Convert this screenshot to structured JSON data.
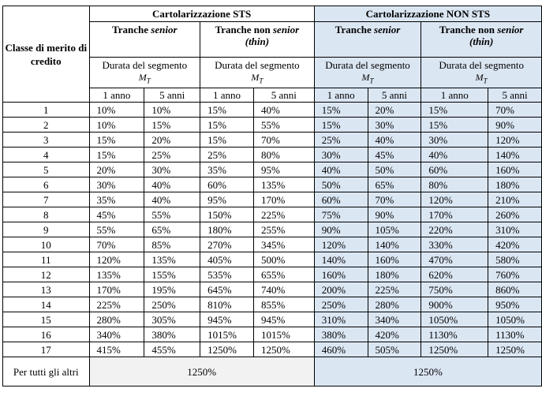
{
  "header": {
    "classe_label": "Classe di merito di credito",
    "groups": [
      "Cartolarizzazione STS",
      "Cartolarizzazione NON STS"
    ],
    "tranches": [
      {
        "prefix": "Tranche ",
        "em": "senior",
        "suffix": "",
        "line2": ""
      },
      {
        "prefix": "Tranche non ",
        "em": "senior",
        "suffix": "",
        "line2": "(thin)"
      },
      {
        "prefix": "Tranche ",
        "em": "senior",
        "suffix": "",
        "line2": ""
      },
      {
        "prefix": "Tranche non ",
        "em": "senior",
        "suffix": "",
        "line2": "(thin)"
      }
    ],
    "durata_label": "Durata del segmento",
    "mt_main": "M",
    "mt_sub": "T",
    "periods": [
      "1 anno",
      "5 anni",
      "1 anno",
      "5 anni",
      "1 anno",
      "5 anni",
      "1 anno",
      "5 anni"
    ]
  },
  "rows": [
    {
      "classe": "1",
      "values": [
        "10%",
        "10%",
        "15%",
        "40%",
        "15%",
        "20%",
        "15%",
        "70%"
      ]
    },
    {
      "classe": "2",
      "values": [
        "10%",
        "15%",
        "15%",
        "55%",
        "15%",
        "30%",
        "15%",
        "90%"
      ]
    },
    {
      "classe": "3",
      "values": [
        "15%",
        "20%",
        "15%",
        "70%",
        "25%",
        "40%",
        "30%",
        "120%"
      ]
    },
    {
      "classe": "4",
      "values": [
        "15%",
        "25%",
        "25%",
        "80%",
        "30%",
        "45%",
        "40%",
        "140%"
      ]
    },
    {
      "classe": "5",
      "values": [
        "20%",
        "30%",
        "35%",
        "95%",
        "40%",
        "50%",
        "60%",
        "160%"
      ]
    },
    {
      "classe": "6",
      "values": [
        "30%",
        "40%",
        "60%",
        "135%",
        "50%",
        "65%",
        "80%",
        "180%"
      ]
    },
    {
      "classe": "7",
      "values": [
        "35%",
        "40%",
        "95%",
        "170%",
        "60%",
        "70%",
        "120%",
        "210%"
      ]
    },
    {
      "classe": "8",
      "values": [
        "45%",
        "55%",
        "150%",
        "225%",
        "75%",
        "90%",
        "170%",
        "260%"
      ]
    },
    {
      "classe": "9",
      "values": [
        "55%",
        "65%",
        "180%",
        "255%",
        "90%",
        "105%",
        "220%",
        "310%"
      ]
    },
    {
      "classe": "10",
      "values": [
        "70%",
        "85%",
        "270%",
        "345%",
        "120%",
        "140%",
        "330%",
        "420%"
      ]
    },
    {
      "classe": "11",
      "values": [
        "120%",
        "135%",
        "405%",
        "500%",
        "140%",
        "160%",
        "470%",
        "580%"
      ]
    },
    {
      "classe": "12",
      "values": [
        "135%",
        "155%",
        "535%",
        "655%",
        "160%",
        "180%",
        "620%",
        "760%"
      ]
    },
    {
      "classe": "13",
      "values": [
        "170%",
        "195%",
        "645%",
        "740%",
        "200%",
        "225%",
        "750%",
        "860%"
      ]
    },
    {
      "classe": "14",
      "values": [
        "225%",
        "250%",
        "810%",
        "855%",
        "250%",
        "280%",
        "900%",
        "950%"
      ]
    },
    {
      "classe": "15",
      "values": [
        "280%",
        "305%",
        "945%",
        "945%",
        "310%",
        "340%",
        "1050%",
        "1050%"
      ]
    },
    {
      "classe": "16",
      "values": [
        "340%",
        "380%",
        "1015%",
        "1015%",
        "380%",
        "420%",
        "1130%",
        "1130%"
      ]
    },
    {
      "classe": "17",
      "values": [
        "415%",
        "455%",
        "1250%",
        "1250%",
        "460%",
        "505%",
        "1250%",
        "1250%"
      ]
    }
  ],
  "footer": {
    "label": "Per tutti gli altri",
    "sts_value": "1250%",
    "non_sts_value": "1250%"
  },
  "colors": {
    "non_sts_background": "#dbe6f3",
    "footer_sts_background": "#f2f2f2"
  }
}
